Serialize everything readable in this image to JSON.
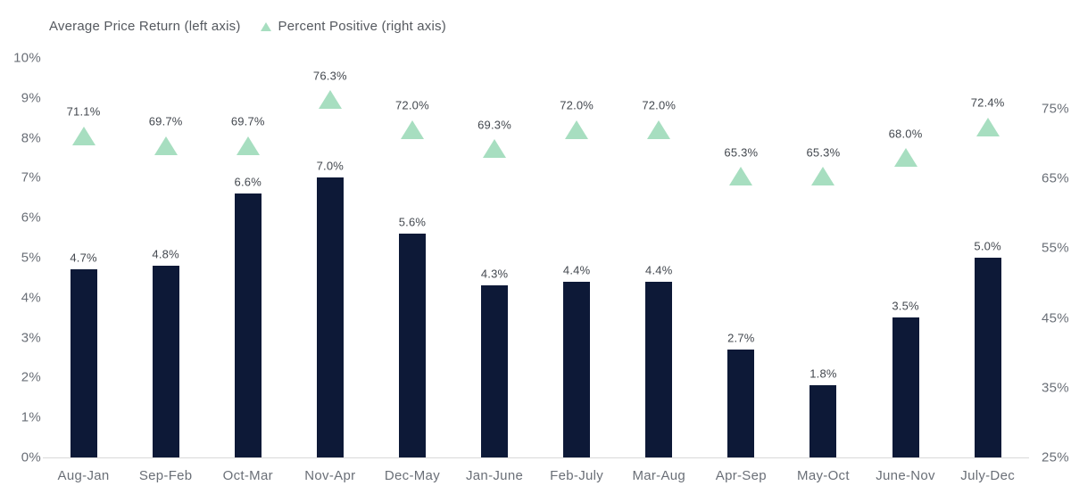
{
  "legend": {
    "bar_label": "Average Price Return (left axis)",
    "triangle_label": "Percent Positive (right axis)"
  },
  "colors": {
    "bar": "#0d1937",
    "triangle": "#a7dec0",
    "axis_text": "#6a6f77",
    "data_label_text": "#43484f",
    "legend_text": "#55595f",
    "axis_line": "#d9d9d9",
    "background": "#ffffff"
  },
  "chart_data": {
    "type": "combo-bar-scatter",
    "categories": [
      "Aug-Jan",
      "Sep-Feb",
      "Oct-Mar",
      "Nov-Apr",
      "Dec-May",
      "Jan-June",
      "Feb-July",
      "Mar-Aug",
      "Apr-Sep",
      "May-Oct",
      "June-Nov",
      "July-Dec"
    ],
    "series": [
      {
        "name": "Average Price Return (left axis)",
        "type": "bar",
        "axis": "left",
        "values": [
          4.7,
          4.8,
          6.6,
          7.0,
          5.6,
          4.3,
          4.4,
          4.4,
          2.7,
          1.8,
          3.5,
          5.0
        ],
        "labels": [
          "4.7%",
          "4.8%",
          "6.6%",
          "7.0%",
          "5.6%",
          "4.3%",
          "4.4%",
          "4.4%",
          "2.7%",
          "1.8%",
          "3.5%",
          "5.0%"
        ]
      },
      {
        "name": "Percent Positive (right axis)",
        "type": "triangle-scatter",
        "axis": "right",
        "values": [
          71.1,
          69.7,
          69.7,
          76.3,
          72.0,
          69.3,
          72.0,
          72.0,
          65.3,
          65.3,
          68.0,
          72.4
        ],
        "labels": [
          "71.1%",
          "69.7%",
          "69.7%",
          "76.3%",
          "72.0%",
          "69.3%",
          "72.0%",
          "72.0%",
          "65.3%",
          "65.3%",
          "68.0%",
          "72.4%"
        ]
      }
    ],
    "left_axis": {
      "min": 0,
      "max": 10,
      "tick_step": 1,
      "tick_labels": [
        "0%",
        "1%",
        "2%",
        "3%",
        "4%",
        "5%",
        "6%",
        "7%",
        "8%",
        "9%",
        "10%"
      ]
    },
    "right_axis": {
      "min": 25,
      "max": 75,
      "tick_step": 10,
      "tick_values": [
        25,
        35,
        45,
        55,
        65,
        75
      ],
      "tick_labels": [
        "25%",
        "35%",
        "45%",
        "55%",
        "65%",
        "75%"
      ]
    },
    "grid": "none",
    "legend_position": "top-left",
    "xlabel": "",
    "ylabel_left": "",
    "ylabel_right": ""
  }
}
